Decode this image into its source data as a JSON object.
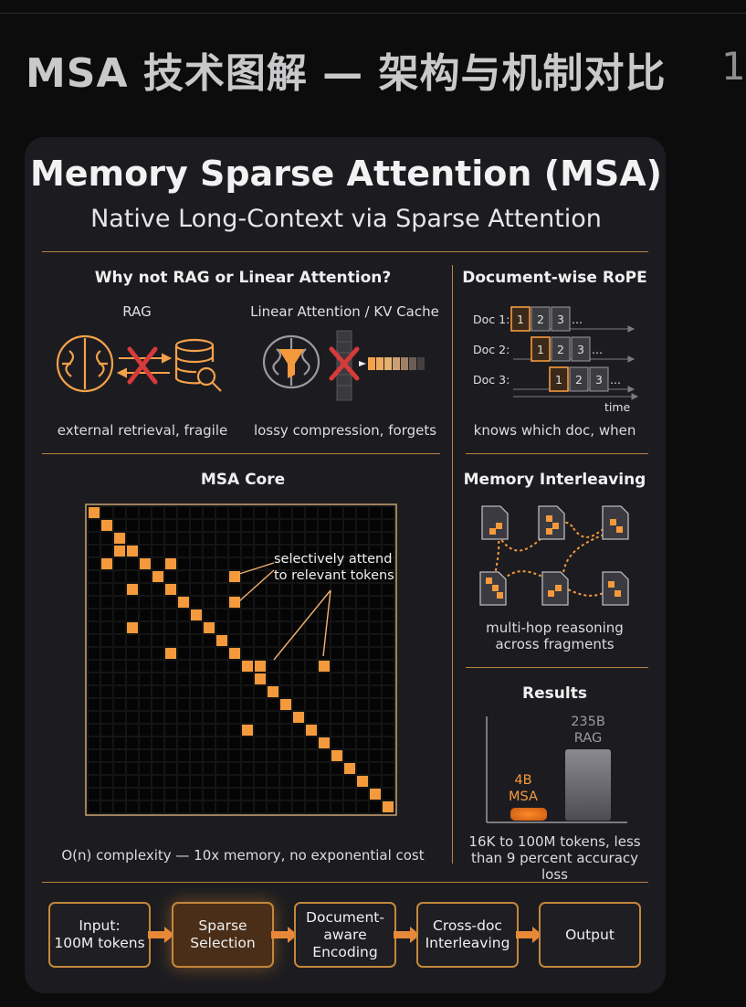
{
  "page": {
    "title": "MSA 技术图解 — 架构与机制对比",
    "page_number": "1"
  },
  "header": {
    "title": "Memory Sparse Attention (MSA)",
    "subtitle": "Native Long-Context via Sparse Attention"
  },
  "why_not": {
    "heading": "Why not RAG or Linear Attention?",
    "rag_label": "RAG",
    "rag_caption": "external retrieval, fragile",
    "linear_label": "Linear Attention / KV Cache",
    "linear_caption": "lossy compression, forgets"
  },
  "rope": {
    "heading": "Document-wise RoPE",
    "docs": [
      "Doc 1:",
      "Doc 2:",
      "Doc 3:"
    ],
    "chips": [
      "1",
      "2",
      "3"
    ],
    "ellipsis": "...",
    "time_label": "time",
    "caption": "knows which doc, when"
  },
  "core": {
    "heading": "MSA Core",
    "annotation_line1": "selectively attend",
    "annotation_line2": "to relevant tokens",
    "caption": "O(n) complexity — 10x memory, no exponential cost"
  },
  "interleave": {
    "heading": "Memory Interleaving",
    "caption_line1": "multi-hop reasoning",
    "caption_line2": "across fragments"
  },
  "results": {
    "heading": "Results",
    "big_value": "235B",
    "big_label": "RAG",
    "small_value": "4B",
    "small_label": "MSA",
    "caption_line1": "16K to 100M tokens, less",
    "caption_line2": "than 9 percent accuracy loss"
  },
  "pipeline": [
    {
      "line1": "Input:",
      "line2": "100M tokens",
      "line3": ""
    },
    {
      "line1": "Sparse",
      "line2": "Selection",
      "line3": ""
    },
    {
      "line1": "Document-",
      "line2": "aware",
      "line3": "Encoding"
    },
    {
      "line1": "Cross-doc",
      "line2": "Interleaving",
      "line3": ""
    },
    {
      "line1": "Output",
      "line2": "",
      "line3": ""
    }
  ],
  "colors": {
    "accent": "#f59a3c",
    "divider": "#b5843f",
    "card": "#1c1c20",
    "background": "#0c0c0d"
  }
}
